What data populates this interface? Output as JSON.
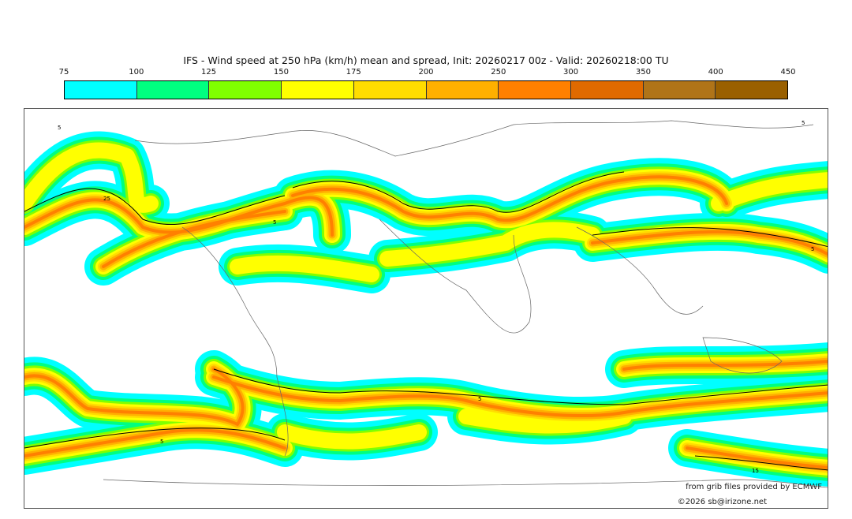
{
  "title": "IFS - Wind speed at 250 hPa (km/h) mean and spread, Init: 20260217 00z - Valid: 20260218:00 TU",
  "colorbar": {
    "ticks": [
      "75",
      "100",
      "125",
      "150",
      "175",
      "200",
      "250",
      "300",
      "350",
      "400",
      "450"
    ],
    "colors": [
      "#00ffff",
      "#00ff80",
      "#80ff00",
      "#ffff00",
      "#ffdd00",
      "#ffb000",
      "#ff8000",
      "#e06a00",
      "#b07418",
      "#9a6000"
    ]
  },
  "map": {
    "contour_labels": [
      "5",
      "25",
      "5",
      "5",
      "5",
      "15",
      "5",
      "5"
    ]
  },
  "credit": "from grib files provided by ECMWF",
  "copyright": "©2026 sb@irizone.net"
}
